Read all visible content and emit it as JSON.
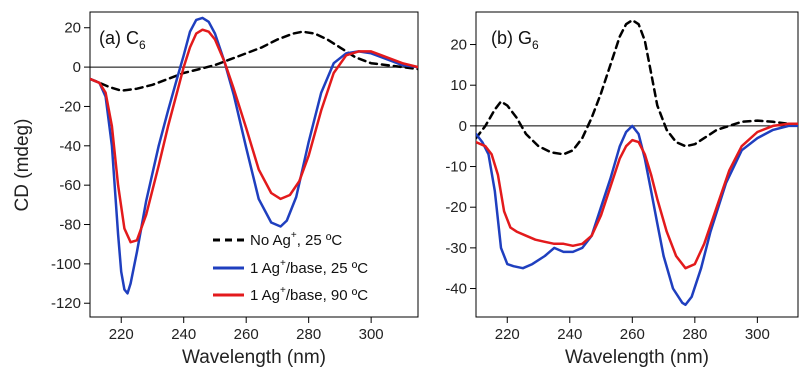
{
  "chart_data": [
    {
      "type": "line",
      "panel_label_main": "(a) C",
      "panel_label_sub": "6",
      "xlabel": "Wavelength (nm)",
      "ylabel": "CD (mdeg)",
      "xlim": [
        210,
        315
      ],
      "ylim": [
        -127,
        28
      ],
      "xticks": [
        220,
        240,
        260,
        280,
        300
      ],
      "yticks": [
        20,
        0,
        -20,
        -40,
        -60,
        -80,
        -100,
        -120
      ],
      "zero_line": true,
      "legend_position": "lower-right",
      "series": [
        {
          "name": "No Ag⁺, 25 ºC",
          "legend_main": "No Ag",
          "legend_sup": "+",
          "legend_rest": ", 25 ºC",
          "color": "#000000",
          "style": "dashed",
          "x": [
            210,
            213,
            216,
            220,
            225,
            230,
            235,
            240,
            245,
            250,
            255,
            260,
            265,
            270,
            275,
            278,
            282,
            286,
            290,
            295,
            300,
            305,
            310,
            315
          ],
          "y": [
            -6,
            -8,
            -10,
            -12,
            -11,
            -9,
            -6,
            -3,
            -1,
            1,
            4,
            7,
            10,
            14,
            17,
            18,
            17,
            14,
            10,
            5,
            2,
            1,
            0,
            -1
          ]
        },
        {
          "name": "1 Ag⁺/base, 25 ºC",
          "legend_main": "1 Ag",
          "legend_sup": "+",
          "legend_rest": "/base, 25 ºC",
          "color": "#1f3fbf",
          "style": "solid",
          "x": [
            210,
            213,
            215,
            217,
            219,
            220,
            221,
            222,
            223,
            225,
            228,
            232,
            235,
            238,
            240,
            242,
            244,
            246,
            248,
            250,
            253,
            256,
            260,
            264,
            268,
            271,
            273,
            276,
            280,
            284,
            288,
            292,
            296,
            300,
            305,
            310,
            315
          ],
          "y": [
            -6,
            -8,
            -15,
            -40,
            -85,
            -104,
            -113,
            -115,
            -110,
            -94,
            -68,
            -40,
            -22,
            -5,
            6,
            18,
            24,
            25,
            23,
            17,
            3,
            -14,
            -41,
            -67,
            -79,
            -81,
            -78,
            -66,
            -38,
            -13,
            2,
            7,
            8,
            7,
            4,
            1,
            0
          ]
        },
        {
          "name": "1 Ag⁺/base, 90 ºC",
          "legend_main": "1 Ag",
          "legend_sup": "+",
          "legend_rest": "/base, 90 ºC",
          "color": "#e31a1c",
          "style": "solid",
          "x": [
            210,
            213,
            215,
            217,
            219,
            221,
            223,
            225,
            228,
            232,
            235,
            238,
            240,
            242,
            244,
            246,
            248,
            250,
            253,
            256,
            260,
            264,
            268,
            271,
            274,
            277,
            280,
            284,
            288,
            292,
            296,
            300,
            305,
            310,
            315
          ],
          "y": [
            -6,
            -8,
            -13,
            -30,
            -60,
            -82,
            -89,
            -88,
            -75,
            -50,
            -30,
            -12,
            0,
            10,
            17,
            19,
            18,
            14,
            3,
            -11,
            -31,
            -52,
            -64,
            -67,
            -65,
            -58,
            -45,
            -22,
            -3,
            6,
            8,
            8,
            5,
            2,
            0
          ]
        }
      ]
    },
    {
      "type": "line",
      "panel_label_main": "(b) G",
      "panel_label_sub": "6",
      "xlabel": "Wavelength (nm)",
      "ylabel": "",
      "xlim": [
        210,
        313
      ],
      "ylim": [
        -47,
        28
      ],
      "xticks": [
        220,
        240,
        260,
        280,
        300
      ],
      "yticks": [
        20,
        10,
        0,
        -10,
        -20,
        -30,
        -40
      ],
      "zero_line": true,
      "series": [
        {
          "name": "No Ag⁺, 25 ºC",
          "color": "#000000",
          "style": "dashed",
          "x": [
            210,
            213,
            216,
            218,
            220,
            223,
            226,
            230,
            234,
            238,
            241,
            244,
            247,
            250,
            253,
            256,
            258,
            260,
            262,
            264,
            266,
            268,
            271,
            274,
            277,
            280,
            283,
            287,
            291,
            295,
            300,
            305,
            310,
            313
          ],
          "y": [
            -3,
            0,
            4,
            6,
            5,
            2,
            -2,
            -5,
            -6.5,
            -7,
            -6,
            -3,
            2,
            8,
            15,
            22,
            25,
            26,
            25,
            21,
            13,
            5,
            -1,
            -4,
            -5,
            -4.5,
            -3,
            -1,
            0,
            1,
            1.3,
            1,
            0.5,
            0.5
          ]
        },
        {
          "name": "1 Ag⁺/base, 25 ºC",
          "color": "#1f3fbf",
          "style": "solid",
          "x": [
            210,
            212,
            214,
            216,
            218,
            220,
            222,
            225,
            228,
            232,
            235,
            238,
            241,
            244,
            247,
            250,
            253,
            256,
            258,
            260,
            262,
            264,
            266,
            268,
            270,
            273,
            276,
            277,
            279,
            282,
            285,
            290,
            295,
            300,
            305,
            310,
            313
          ],
          "y": [
            -2,
            -4,
            -7,
            -16,
            -30,
            -34,
            -34.5,
            -35,
            -34,
            -32,
            -30,
            -31,
            -31,
            -30,
            -27,
            -20,
            -13,
            -5,
            -1.5,
            0,
            -2,
            -8,
            -16,
            -24,
            -32,
            -40,
            -43.5,
            -44,
            -42,
            -35,
            -26,
            -14,
            -6,
            -3,
            -1,
            0,
            0
          ]
        },
        {
          "name": "1 Ag⁺/base, 90 ºC",
          "color": "#e31a1c",
          "style": "solid",
          "x": [
            210,
            213,
            215,
            217,
            219,
            221,
            223,
            226,
            229,
            232,
            235,
            238,
            241,
            244,
            247,
            250,
            253,
            256,
            258,
            260,
            262,
            264,
            266,
            268,
            271,
            274,
            277,
            280,
            283,
            287,
            291,
            295,
            300,
            305,
            310,
            313
          ],
          "y": [
            -4,
            -5,
            -7,
            -12,
            -21,
            -25,
            -26,
            -27,
            -28,
            -28.5,
            -29,
            -29,
            -29.5,
            -29,
            -27,
            -22,
            -15,
            -8,
            -5,
            -3.5,
            -4,
            -7,
            -12,
            -18,
            -26,
            -32,
            -35,
            -34,
            -29,
            -20,
            -11,
            -5,
            -1.5,
            0,
            0.5,
            0.5
          ]
        }
      ]
    }
  ]
}
